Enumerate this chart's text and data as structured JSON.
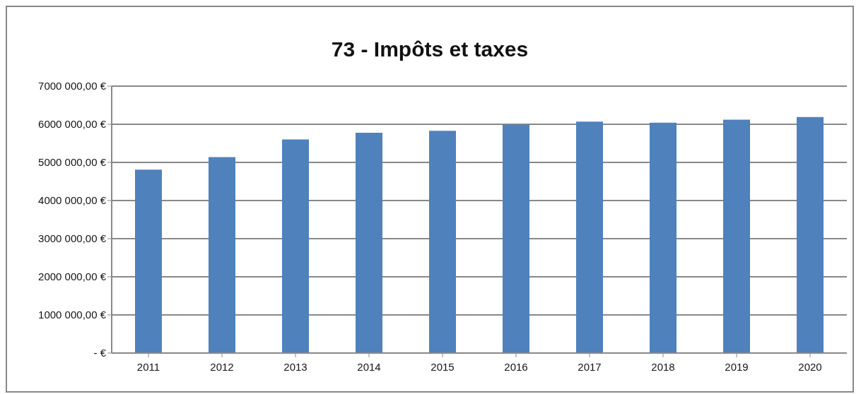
{
  "chart_data": {
    "type": "bar",
    "title": "73 - Impôts et taxes",
    "categories": [
      "2011",
      "2012",
      "2013",
      "2014",
      "2015",
      "2016",
      "2017",
      "2018",
      "2019",
      "2020"
    ],
    "values": [
      4810000,
      5140000,
      5600000,
      5780000,
      5830000,
      5990000,
      6070000,
      6040000,
      6120000,
      6190000
    ],
    "color": "#4f81bd",
    "ylim": [
      0,
      7000000
    ],
    "yticks": [
      {
        "value": 0,
        "label": "-  €"
      },
      {
        "value": 1000000,
        "label": "1000 000,00 €"
      },
      {
        "value": 2000000,
        "label": "2000 000,00 €"
      },
      {
        "value": 3000000,
        "label": "3000 000,00 €"
      },
      {
        "value": 4000000,
        "label": "4000 000,00 €"
      },
      {
        "value": 5000000,
        "label": "5000 000,00 €"
      },
      {
        "value": 6000000,
        "label": "6000 000,00 €"
      },
      {
        "value": 7000000,
        "label": "7000 000,00 €"
      }
    ],
    "grid": "y",
    "legend": false
  }
}
